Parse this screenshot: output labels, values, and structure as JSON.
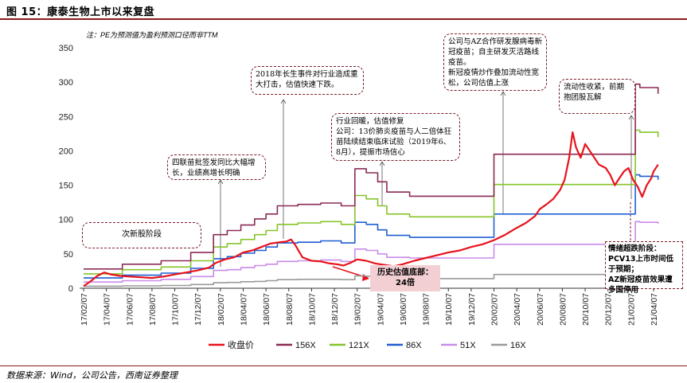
{
  "header": {
    "title": "图 15：康泰生物上市以来复盘",
    "source": "数据来源：Wind，公司公告，西南证券整理"
  },
  "chart_data": {
    "type": "line",
    "note": "注：PE为预测值为盈利预测口径而非TTM",
    "ylim": [
      0,
      350
    ],
    "y_ticks": [
      0,
      50,
      100,
      150,
      200,
      250,
      300,
      350
    ],
    "x_tick_labels": [
      "17/02/07",
      "17/04/07",
      "17/06/07",
      "17/08/07",
      "17/10/07",
      "17/12/07",
      "18/02/07",
      "18/04/07",
      "18/06/07",
      "18/08/07",
      "18/10/07",
      "18/12/07",
      "19/02/07",
      "19/04/07",
      "19/06/07",
      "19/08/07",
      "19/10/07",
      "19/12/07",
      "20/02/07",
      "20/04/07",
      "20/06/07",
      "20/08/07",
      "20/10/07",
      "20/12/07",
      "21/02/07",
      "21/04/07"
    ],
    "series": [
      {
        "name": "收盘价",
        "color": "#e8121b",
        "width": 2.2,
        "points": [
          [
            0,
            3
          ],
          [
            0.3,
            10
          ],
          [
            0.6,
            18
          ],
          [
            0.9,
            23
          ],
          [
            1.2,
            20
          ],
          [
            1.6,
            18
          ],
          [
            2,
            17
          ],
          [
            2.5,
            16
          ],
          [
            3,
            15
          ],
          [
            3.5,
            17
          ],
          [
            4,
            20
          ],
          [
            4.5,
            23
          ],
          [
            5,
            26
          ],
          [
            5.5,
            30
          ],
          [
            5.8,
            37
          ],
          [
            6.2,
            42
          ],
          [
            6.6,
            45
          ],
          [
            7,
            52
          ],
          [
            7.4,
            55
          ],
          [
            7.8,
            60
          ],
          [
            8.2,
            65
          ],
          [
            8.6,
            67
          ],
          [
            8.9,
            68
          ],
          [
            9.1,
            71
          ],
          [
            9.3,
            62
          ],
          [
            9.6,
            45
          ],
          [
            10,
            40
          ],
          [
            10.4,
            39
          ],
          [
            10.8,
            36
          ],
          [
            11.1,
            35
          ],
          [
            11.4,
            33
          ],
          [
            11.7,
            37
          ],
          [
            12,
            42
          ],
          [
            12.4,
            40
          ],
          [
            12.8,
            36
          ],
          [
            13.2,
            34
          ],
          [
            13.6,
            32
          ],
          [
            14,
            35
          ],
          [
            14.5,
            40
          ],
          [
            15,
            44
          ],
          [
            15.5,
            48
          ],
          [
            16,
            52
          ],
          [
            16.5,
            55
          ],
          [
            17,
            60
          ],
          [
            17.5,
            64
          ],
          [
            18,
            70
          ],
          [
            18.5,
            78
          ],
          [
            19,
            88
          ],
          [
            19.4,
            95
          ],
          [
            19.8,
            105
          ],
          [
            20,
            115
          ],
          [
            20.3,
            122
          ],
          [
            20.6,
            130
          ],
          [
            20.9,
            143
          ],
          [
            21.1,
            158
          ],
          [
            21.3,
            190
          ],
          [
            21.45,
            227
          ],
          [
            21.6,
            205
          ],
          [
            21.8,
            190
          ],
          [
            22,
            210
          ],
          [
            22.3,
            195
          ],
          [
            22.6,
            180
          ],
          [
            22.9,
            175
          ],
          [
            23.1,
            165
          ],
          [
            23.3,
            150
          ],
          [
            23.5,
            160
          ],
          [
            23.7,
            170
          ],
          [
            23.9,
            175
          ],
          [
            24.1,
            158
          ],
          [
            24.3,
            148
          ],
          [
            24.5,
            133
          ],
          [
            24.7,
            150
          ],
          [
            24.9,
            160
          ],
          [
            25,
            170
          ],
          [
            25.2,
            180
          ]
        ]
      },
      {
        "name": "156X",
        "color": "#8b2a55",
        "width": 1.6,
        "points": [
          [
            0,
            28
          ],
          [
            1.7,
            28
          ],
          [
            1.7,
            35
          ],
          [
            3.4,
            35
          ],
          [
            3.4,
            40
          ],
          [
            4.7,
            40
          ],
          [
            4.7,
            52
          ],
          [
            5.7,
            52
          ],
          [
            5.7,
            78
          ],
          [
            6.3,
            78
          ],
          [
            6.3,
            84
          ],
          [
            6.9,
            84
          ],
          [
            6.9,
            92
          ],
          [
            7.5,
            92
          ],
          [
            7.5,
            101
          ],
          [
            8.0,
            101
          ],
          [
            8.0,
            108
          ],
          [
            8.5,
            108
          ],
          [
            8.5,
            120
          ],
          [
            9.4,
            120
          ],
          [
            9.4,
            122
          ],
          [
            10.4,
            122
          ],
          [
            10.4,
            124
          ],
          [
            11.3,
            124
          ],
          [
            11.3,
            120
          ],
          [
            11.9,
            120
          ],
          [
            11.9,
            174
          ],
          [
            12.4,
            174
          ],
          [
            12.4,
            168
          ],
          [
            12.9,
            168
          ],
          [
            12.9,
            155
          ],
          [
            13.3,
            155
          ],
          [
            13.3,
            140
          ],
          [
            14.3,
            140
          ],
          [
            14.3,
            134
          ],
          [
            18.0,
            134
          ],
          [
            18.0,
            195
          ],
          [
            24.2,
            195
          ],
          [
            24.2,
            297
          ],
          [
            24.4,
            297
          ],
          [
            24.4,
            292
          ],
          [
            25.2,
            292
          ],
          [
            25.2,
            283
          ]
        ]
      },
      {
        "name": "121X",
        "color": "#86c42a",
        "width": 1.6,
        "points": [
          [
            0,
            21
          ],
          [
            1.7,
            21
          ],
          [
            1.7,
            27
          ],
          [
            3.4,
            27
          ],
          [
            3.4,
            31
          ],
          [
            4.7,
            31
          ],
          [
            4.7,
            40
          ],
          [
            5.7,
            40
          ],
          [
            5.7,
            60
          ],
          [
            6.3,
            60
          ],
          [
            6.3,
            65
          ],
          [
            6.9,
            65
          ],
          [
            6.9,
            71
          ],
          [
            7.5,
            71
          ],
          [
            7.5,
            78
          ],
          [
            8.0,
            78
          ],
          [
            8.0,
            84
          ],
          [
            8.5,
            84
          ],
          [
            8.5,
            93
          ],
          [
            9.4,
            93
          ],
          [
            9.4,
            95
          ],
          [
            10.4,
            95
          ],
          [
            10.4,
            97
          ],
          [
            11.3,
            97
          ],
          [
            11.3,
            93
          ],
          [
            11.9,
            93
          ],
          [
            11.9,
            135
          ],
          [
            12.4,
            135
          ],
          [
            12.4,
            130
          ],
          [
            12.9,
            130
          ],
          [
            12.9,
            120
          ],
          [
            13.3,
            120
          ],
          [
            13.3,
            108
          ],
          [
            14.3,
            108
          ],
          [
            14.3,
            104
          ],
          [
            18.0,
            104
          ],
          [
            18.0,
            151
          ],
          [
            24.2,
            151
          ],
          [
            24.2,
            230
          ],
          [
            24.4,
            230
          ],
          [
            24.4,
            227
          ],
          [
            25.2,
            227
          ],
          [
            25.2,
            220
          ]
        ]
      },
      {
        "name": "86X",
        "color": "#1f5fd1",
        "width": 1.6,
        "points": [
          [
            0,
            15
          ],
          [
            1.7,
            15
          ],
          [
            1.7,
            19
          ],
          [
            3.4,
            19
          ],
          [
            3.4,
            22
          ],
          [
            4.7,
            22
          ],
          [
            4.7,
            29
          ],
          [
            5.7,
            29
          ],
          [
            5.7,
            43
          ],
          [
            6.3,
            43
          ],
          [
            6.3,
            46
          ],
          [
            6.9,
            46
          ],
          [
            6.9,
            51
          ],
          [
            7.5,
            51
          ],
          [
            7.5,
            55
          ],
          [
            8.0,
            55
          ],
          [
            8.0,
            60
          ],
          [
            8.5,
            60
          ],
          [
            8.5,
            66
          ],
          [
            9.4,
            66
          ],
          [
            9.4,
            67
          ],
          [
            10.4,
            67
          ],
          [
            10.4,
            69
          ],
          [
            11.3,
            69
          ],
          [
            11.3,
            66
          ],
          [
            11.9,
            66
          ],
          [
            11.9,
            96
          ],
          [
            12.4,
            96
          ],
          [
            12.4,
            93
          ],
          [
            12.9,
            93
          ],
          [
            12.9,
            85
          ],
          [
            13.3,
            85
          ],
          [
            13.3,
            77
          ],
          [
            14.3,
            77
          ],
          [
            14.3,
            74
          ],
          [
            18.0,
            74
          ],
          [
            18.0,
            108
          ],
          [
            24.2,
            108
          ],
          [
            24.2,
            165
          ],
          [
            24.4,
            165
          ],
          [
            24.4,
            163
          ],
          [
            25.2,
            163
          ],
          [
            25.2,
            158
          ]
        ]
      },
      {
        "name": "51X",
        "color": "#c98be8",
        "width": 1.6,
        "points": [
          [
            0,
            9
          ],
          [
            1.7,
            9
          ],
          [
            1.7,
            11
          ],
          [
            3.4,
            11
          ],
          [
            3.4,
            13
          ],
          [
            4.7,
            13
          ],
          [
            4.7,
            17
          ],
          [
            5.7,
            17
          ],
          [
            5.7,
            26
          ],
          [
            6.3,
            26
          ],
          [
            6.3,
            27
          ],
          [
            6.9,
            27
          ],
          [
            6.9,
            30
          ],
          [
            7.5,
            30
          ],
          [
            7.5,
            33
          ],
          [
            8.0,
            33
          ],
          [
            8.0,
            35
          ],
          [
            8.5,
            35
          ],
          [
            8.5,
            39
          ],
          [
            9.4,
            39
          ],
          [
            9.4,
            40
          ],
          [
            10.4,
            40
          ],
          [
            10.4,
            41
          ],
          [
            11.3,
            41
          ],
          [
            11.3,
            39
          ],
          [
            11.9,
            39
          ],
          [
            11.9,
            57
          ],
          [
            12.4,
            57
          ],
          [
            12.4,
            55
          ],
          [
            12.9,
            55
          ],
          [
            12.9,
            50
          ],
          [
            13.3,
            50
          ],
          [
            13.3,
            45
          ],
          [
            14.3,
            45
          ],
          [
            14.3,
            44
          ],
          [
            18.0,
            44
          ],
          [
            18.0,
            64
          ],
          [
            24.2,
            64
          ],
          [
            24.2,
            97
          ],
          [
            24.4,
            97
          ],
          [
            24.4,
            96
          ],
          [
            25.2,
            96
          ],
          [
            25.2,
            94
          ]
        ]
      },
      {
        "name": "16X",
        "color": "#9a9a9a",
        "width": 1.6,
        "points": [
          [
            0,
            3
          ],
          [
            1.7,
            3
          ],
          [
            1.7,
            3.5
          ],
          [
            3.4,
            3.5
          ],
          [
            3.4,
            4
          ],
          [
            4.7,
            4
          ],
          [
            4.7,
            5.5
          ],
          [
            5.7,
            5.5
          ],
          [
            5.7,
            8
          ],
          [
            6.3,
            8
          ],
          [
            6.3,
            8.5
          ],
          [
            6.9,
            8.5
          ],
          [
            6.9,
            9.5
          ],
          [
            7.5,
            9.5
          ],
          [
            7.5,
            10
          ],
          [
            8.0,
            10
          ],
          [
            8.0,
            11
          ],
          [
            8.5,
            11
          ],
          [
            8.5,
            12.5
          ],
          [
            9.4,
            12.5
          ],
          [
            9.4,
            13
          ],
          [
            10.4,
            13
          ],
          [
            10.4,
            13
          ],
          [
            11.3,
            13
          ],
          [
            11.3,
            12.5
          ],
          [
            11.9,
            12.5
          ],
          [
            11.9,
            18
          ],
          [
            12.4,
            18
          ],
          [
            12.4,
            17.5
          ],
          [
            12.9,
            17.5
          ],
          [
            12.9,
            16
          ],
          [
            13.3,
            16
          ],
          [
            13.3,
            14
          ],
          [
            14.3,
            14
          ],
          [
            14.3,
            14
          ],
          [
            18.0,
            14
          ],
          [
            18.0,
            20
          ],
          [
            24.2,
            20
          ],
          [
            24.2,
            30
          ],
          [
            24.4,
            30
          ],
          [
            24.4,
            30
          ],
          [
            25.2,
            30
          ],
          [
            25.2,
            29
          ]
        ]
      }
    ],
    "annotations": [
      {
        "id": "a1",
        "text": "次新股阶段"
      },
      {
        "id": "a2",
        "text": "四联苗批签发同比大幅增长，业绩高增长明确"
      },
      {
        "id": "a3",
        "text": "2018年长生事件对行业造成重大打击，估值快速下跌。"
      },
      {
        "id": "a4",
        "text": "行业回暖，估值修复\n公司：13价肺炎疫苗与人二倍体狂苗陆续结束临床试验（2019年6、8月），提振市场信心"
      },
      {
        "id": "a5",
        "text": "公司与AZ合作研发腺病毒新冠疫苗；自主研发灭活路线疫苗。\n新冠疫情炒作叠加流动性宽松，公司估值上涨"
      },
      {
        "id": "a6",
        "text": "流动性收紧，前期抱团股瓦解"
      },
      {
        "id": "a7",
        "text": "情绪超跌阶段：\nPCV13上市时间低于预期；\nAZ新冠疫苗效果遭多国停用"
      },
      {
        "id": "a8",
        "text": "历史估值底部：\n24倍"
      }
    ]
  }
}
